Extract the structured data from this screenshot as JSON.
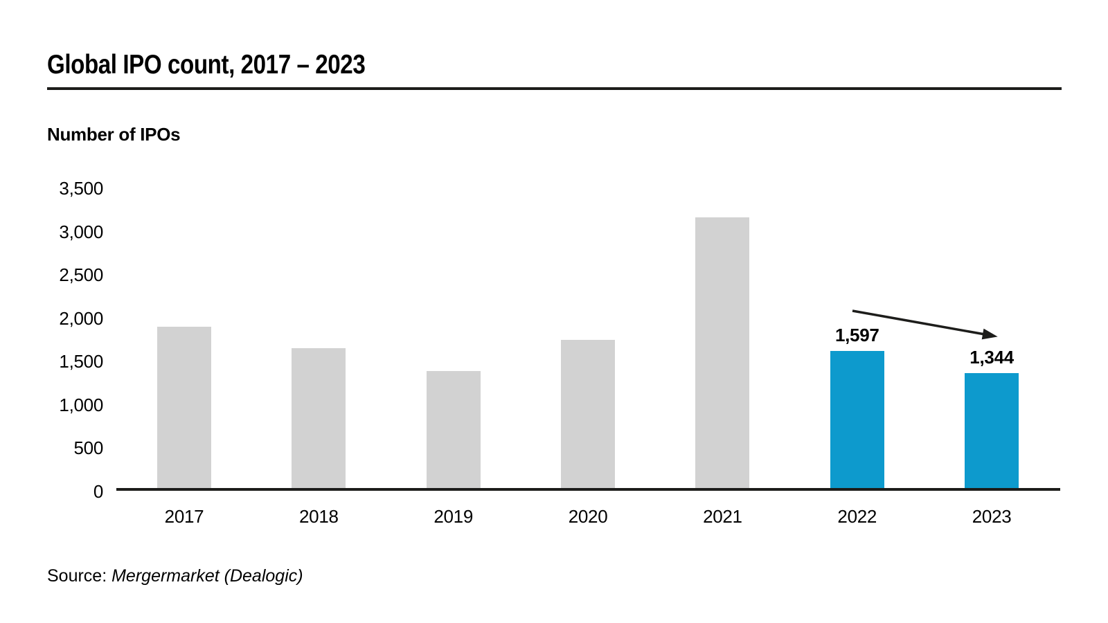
{
  "page": {
    "title": "Global IPO count, 2017 – 2023",
    "source": {
      "prefix": "Source: ",
      "text": "Mergermarket (Dealogic)"
    }
  },
  "chart_data": {
    "type": "bar",
    "title": "Global IPO count, 2017 – 2023",
    "ylabel": "Number of IPOs",
    "xlabel": "",
    "categories": [
      "2017",
      "2018",
      "2019",
      "2020",
      "2021",
      "2022",
      "2023"
    ],
    "values": [
      1880,
      1630,
      1370,
      1730,
      3140,
      1597,
      1344
    ],
    "bar_labels": [
      "",
      "",
      "",
      "",
      "",
      "1,597",
      "1,344"
    ],
    "ytick_labels": [
      "0",
      "500",
      "1,000",
      "1,500",
      "2,000",
      "2,500",
      "3,000",
      "3,500"
    ],
    "ytick_values": [
      0,
      500,
      1000,
      1500,
      2000,
      2500,
      3000,
      3500
    ],
    "ylim": [
      0,
      3500
    ],
    "grid": false,
    "legend": "none",
    "highlight_start_index": 5,
    "colors": {
      "bar_default": "#d2d2d2",
      "bar_highlight": "#0d9acd",
      "axis_line": "#1d1d1b",
      "text": "#000000"
    },
    "annotation": {
      "type": "arrow",
      "from_category": "2022",
      "to_category": "2023",
      "direction": "down-right"
    }
  }
}
